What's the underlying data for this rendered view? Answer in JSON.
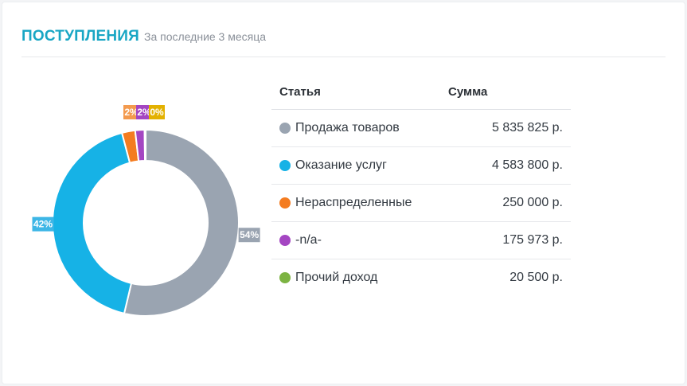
{
  "header": {
    "title": "ПОСТУПЛЕНИЯ",
    "subtitle": "За последние 3 месяца"
  },
  "table": {
    "col_name": "Статья",
    "col_sum": "Сумма",
    "rows": [
      {
        "name": "Продажа товаров",
        "sum": "5 835 825 р.",
        "color": "#9aa4b1"
      },
      {
        "name": "Оказание услуг",
        "sum": "4 583 800 р.",
        "color": "#16b2e6"
      },
      {
        "name": "Нераспределенные",
        "sum": "250 000 р.",
        "color": "#f47c20"
      },
      {
        "name": "-n/a-",
        "sum": "175 973 р.",
        "color": "#a446c2"
      },
      {
        "name": "Прочий доход",
        "sum": "20 500 р.",
        "color": "#7cb342"
      }
    ]
  },
  "chart_data": {
    "type": "pie",
    "labels": [
      "Продажа товаров",
      "Оказание услуг",
      "Нераспределенные",
      "-n/a-",
      "Прочий доход"
    ],
    "values": [
      5835825,
      4583800,
      250000,
      175973,
      20500
    ],
    "percent_labels": [
      "54%",
      "42%",
      "2%",
      "2%",
      "0%"
    ],
    "colors": [
      "#9aa4b1",
      "#16b2e6",
      "#f47c20",
      "#a446c2",
      "#7cb342"
    ],
    "label_colors": [
      "#9aa4b1",
      "#3db6e6",
      "#f39a4e",
      "#a446c2",
      "#e3b100"
    ]
  }
}
